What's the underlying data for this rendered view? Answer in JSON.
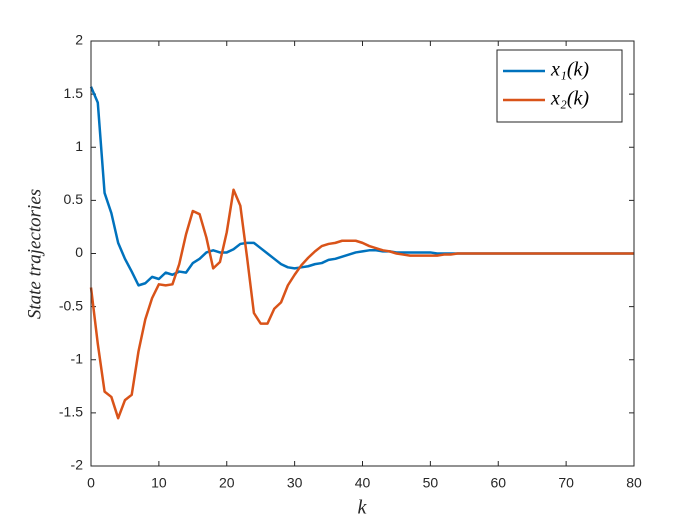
{
  "chart_data": {
    "type": "line",
    "x": [
      0,
      1,
      2,
      3,
      4,
      5,
      6,
      7,
      8,
      9,
      10,
      11,
      12,
      13,
      14,
      15,
      16,
      17,
      18,
      19,
      20,
      21,
      22,
      23,
      24,
      25,
      26,
      27,
      28,
      29,
      30,
      31,
      32,
      33,
      34,
      35,
      36,
      37,
      38,
      39,
      40,
      41,
      42,
      43,
      44,
      45,
      46,
      47,
      48,
      49,
      50,
      51,
      52,
      53,
      54,
      55,
      56,
      57,
      58,
      59,
      60,
      61,
      62,
      63,
      64,
      65,
      66,
      67,
      68,
      69,
      70,
      71,
      72,
      73,
      74,
      75,
      76,
      77,
      78,
      79,
      80
    ],
    "series": [
      {
        "name": "x₁(k)",
        "color": "#0072BD",
        "values": [
          1.57,
          1.42,
          0.57,
          0.38,
          0.1,
          -0.05,
          -0.17,
          -0.3,
          -0.28,
          -0.22,
          -0.24,
          -0.18,
          -0.2,
          -0.17,
          -0.18,
          -0.09,
          -0.05,
          0.01,
          0.03,
          0.01,
          0.01,
          0.04,
          0.09,
          0.1,
          0.1,
          0.05,
          0,
          -0.05,
          -0.1,
          -0.13,
          -0.14,
          -0.13,
          -0.12,
          -0.1,
          -0.09,
          -0.06,
          -0.05,
          -0.03,
          -0.01,
          0.01,
          0.02,
          0.03,
          0.03,
          0.02,
          0.02,
          0.01,
          0.01,
          0.01,
          0.01,
          0.01,
          0.01,
          0,
          0,
          0,
          0,
          0,
          0,
          0,
          0,
          0,
          0,
          0,
          0,
          0,
          0,
          0,
          0,
          0,
          0,
          0,
          0,
          0,
          0,
          0,
          0,
          0,
          0,
          0,
          0,
          0,
          0
        ]
      },
      {
        "name": "x₂(k)",
        "color": "#D95319",
        "values": [
          -0.32,
          -0.85,
          -1.3,
          -1.35,
          -1.55,
          -1.38,
          -1.33,
          -0.92,
          -0.62,
          -0.42,
          -0.29,
          -0.3,
          -0.29,
          -0.1,
          0.18,
          0.4,
          0.37,
          0.15,
          -0.14,
          -0.08,
          0.2,
          0.6,
          0.45,
          -0.04,
          -0.56,
          -0.66,
          -0.66,
          -0.52,
          -0.46,
          -0.3,
          -0.2,
          -0.11,
          -0.04,
          0.02,
          0.07,
          0.09,
          0.1,
          0.12,
          0.12,
          0.12,
          0.1,
          0.07,
          0.05,
          0.03,
          0.02,
          0,
          -0.01,
          -0.02,
          -0.02,
          -0.02,
          -0.02,
          -0.02,
          -0.01,
          -0.01,
          0,
          0,
          0,
          0,
          0,
          0,
          0,
          0,
          0,
          0,
          0,
          0,
          0,
          0,
          0,
          0,
          0,
          0,
          0,
          0,
          0,
          0,
          0,
          0,
          0,
          0,
          0
        ]
      }
    ],
    "x_label": "k",
    "y_label": "State trajectories",
    "xlim": [
      0,
      80
    ],
    "xticks": [
      0,
      10,
      20,
      30,
      40,
      50,
      60,
      70,
      80
    ],
    "ylim": [
      -2,
      2
    ],
    "yticks": [
      -2,
      -1.5,
      -1,
      -0.5,
      0,
      0.5,
      1,
      1.5,
      2
    ],
    "grid": false,
    "legend": "top-right"
  }
}
